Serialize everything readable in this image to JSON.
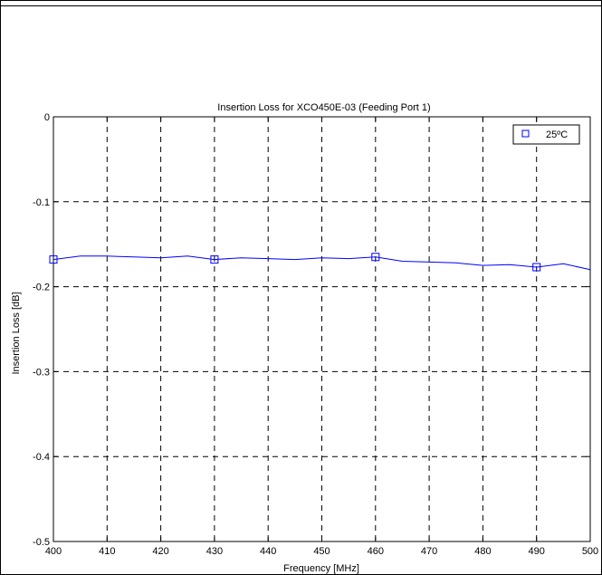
{
  "chart_data": {
    "type": "line",
    "title": "Insertion Loss for XCO450E-03 (Feeding Port 1)",
    "xlabel": "Frequency [MHz]",
    "ylabel": "Insertion Loss [dB]",
    "xlim": [
      400,
      500
    ],
    "ylim": [
      -0.5,
      0
    ],
    "xticks": [
      400,
      410,
      420,
      430,
      440,
      450,
      460,
      470,
      480,
      490,
      500
    ],
    "yticks": [
      0,
      -0.1,
      -0.2,
      -0.3,
      -0.4,
      -0.5
    ],
    "xtick_labels": [
      "400",
      "410",
      "420",
      "430",
      "440",
      "450",
      "460",
      "470",
      "480",
      "490",
      "500"
    ],
    "ytick_labels": [
      "0",
      "-0.1",
      "-0.2",
      "-0.3",
      "-0.4",
      "-0.5"
    ],
    "grid": true,
    "legend_position": "top-right",
    "series": [
      {
        "name": "25ºC",
        "color": "#0000ff",
        "marker": "square",
        "x": [
          400,
          405,
          410,
          415,
          420,
          425,
          430,
          435,
          440,
          445,
          450,
          455,
          460,
          465,
          470,
          475,
          480,
          485,
          490,
          495,
          500
        ],
        "y": [
          -0.168,
          -0.164,
          -0.164,
          -0.165,
          -0.166,
          -0.164,
          -0.168,
          -0.166,
          -0.167,
          -0.168,
          -0.166,
          -0.167,
          -0.165,
          -0.17,
          -0.171,
          -0.172,
          -0.175,
          -0.174,
          -0.177,
          -0.173,
          -0.18
        ],
        "marker_x": [
          400,
          430,
          460,
          490
        ],
        "marker_y": [
          -0.168,
          -0.168,
          -0.165,
          -0.177
        ]
      }
    ]
  }
}
